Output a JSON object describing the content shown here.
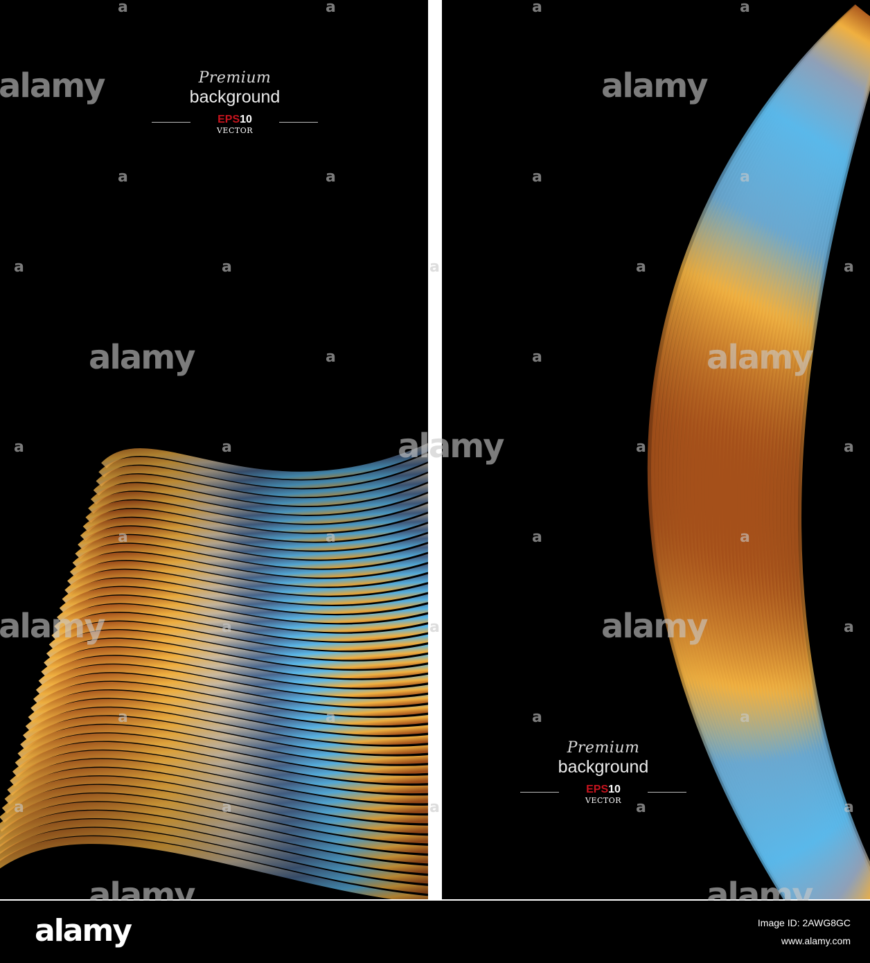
{
  "left_panel": {
    "premium": "Premium",
    "background": "background",
    "eps_red": "EPS",
    "eps_num": "10",
    "vector": "VECTOR"
  },
  "right_panel": {
    "premium": "Premium",
    "background": "background",
    "eps_red": "EPS",
    "eps_num": "10",
    "vector": "VECTOR"
  },
  "watermark": {
    "word": "alamy",
    "letter": "a"
  },
  "footer": {
    "logo": "alamy",
    "image_id": "Image ID: 2AWG8GC",
    "url": "www.alamy.com"
  },
  "colors": {
    "background": "#000000",
    "gold": "#f0b040",
    "copper": "#a5501a",
    "blue": "#5ab8ea",
    "eps_red": "#c8141e"
  }
}
